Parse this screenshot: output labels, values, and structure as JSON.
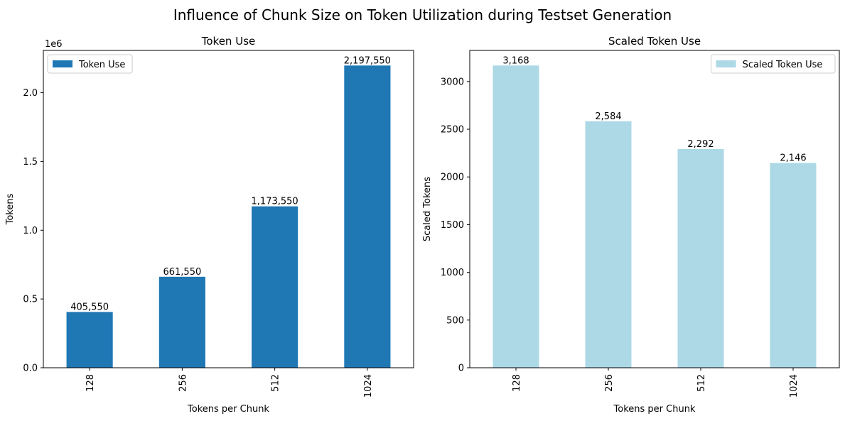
{
  "suptitle": "Influence of Chunk Size on Token Utilization during Testset Generation",
  "chart_data": [
    {
      "type": "bar",
      "title": "Token Use",
      "xlabel": "Tokens per Chunk",
      "ylabel": "Tokens",
      "offset_label": "1e6",
      "categories": [
        "128",
        "256",
        "512",
        "1024"
      ],
      "values": [
        405550,
        661550,
        1173550,
        2197550
      ],
      "data_labels": [
        "405,550",
        "661,550",
        "1,173,550",
        "2,197,550"
      ],
      "yticks": [
        0,
        500000,
        1000000,
        1500000,
        2000000
      ],
      "ytick_labels": [
        "0.0",
        "0.5",
        "1.0",
        "1.5",
        "2.0"
      ],
      "ylim": [
        0,
        2307427.5
      ],
      "legend": "Token Use",
      "legend_position": "upper left",
      "color": "#1f77b4"
    },
    {
      "type": "bar",
      "title": "Scaled Token Use",
      "xlabel": "Tokens per Chunk",
      "ylabel": "Scaled Tokens",
      "offset_label": "",
      "categories": [
        "128",
        "256",
        "512",
        "1024"
      ],
      "values": [
        3168,
        2584,
        2292,
        2146
      ],
      "data_labels": [
        "3,168",
        "2,584",
        "2,292",
        "2,146"
      ],
      "yticks": [
        0,
        500,
        1000,
        1500,
        2000,
        2500,
        3000
      ],
      "ytick_labels": [
        "0",
        "500",
        "1000",
        "1500",
        "2000",
        "2500",
        "3000"
      ],
      "ylim": [
        0,
        3326.4
      ],
      "legend": "Scaled Token Use",
      "legend_position": "upper right",
      "color": "#add8e6"
    }
  ]
}
